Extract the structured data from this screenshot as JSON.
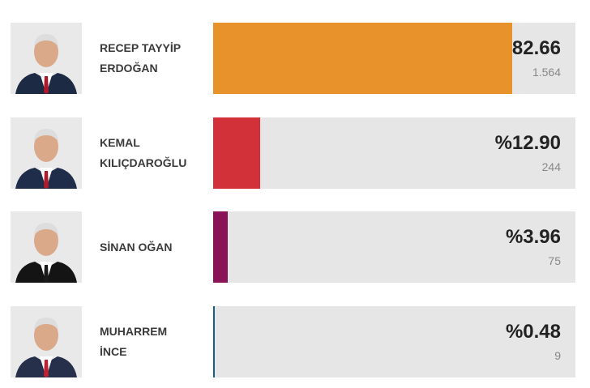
{
  "chart_data": {
    "type": "bar",
    "orientation": "horizontal",
    "categories": [
      "RECEP TAYYİP ERDOĞAN",
      "KEMAL KILIÇDAROĞLU",
      "SİNAN OĞAN",
      "MUHARREM İNCE"
    ],
    "values": [
      82.66,
      12.9,
      3.96,
      0.48
    ],
    "value_labels": [
      "%82.66",
      "%12.90",
      "%3.96",
      "%0.48"
    ],
    "colors": [
      "#e8922b",
      "#d2313a",
      "#8a1256",
      "#1a5f8a"
    ],
    "votes": [
      {
        "value": 1564,
        "label": "1.564"
      },
      244,
      75,
      9
    ],
    "xlim": [
      0,
      100
    ]
  }
}
